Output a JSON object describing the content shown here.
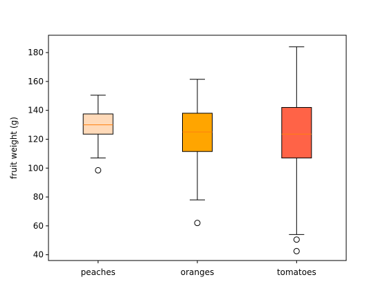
{
  "chart_data": {
    "type": "boxplot",
    "title": "",
    "xlabel": "",
    "ylabel": "fruit weight (g)",
    "ylim": [
      36,
      192
    ],
    "yticks": [
      40,
      60,
      80,
      100,
      120,
      140,
      160,
      180
    ],
    "categories": [
      "peaches",
      "oranges",
      "tomatoes"
    ],
    "boxes": [
      {
        "label": "peaches",
        "color": "#ffdab9",
        "whisker_low": 107,
        "q1": 123.5,
        "median": 130,
        "q3": 137.5,
        "whisker_high": 150.5,
        "outliers": [
          98.5
        ]
      },
      {
        "label": "oranges",
        "color": "#ffa500",
        "whisker_low": 78,
        "q1": 111.5,
        "median": 125,
        "q3": 138,
        "whisker_high": 161.5,
        "outliers": [
          62
        ]
      },
      {
        "label": "tomatoes",
        "color": "#ff6347",
        "whisker_low": 54,
        "q1": 107,
        "median": 123.5,
        "q3": 142,
        "whisker_high": 184,
        "outliers": [
          50.5,
          42.5
        ]
      }
    ],
    "median_color": "#ff7f0e",
    "grid": false,
    "legend": "none"
  }
}
